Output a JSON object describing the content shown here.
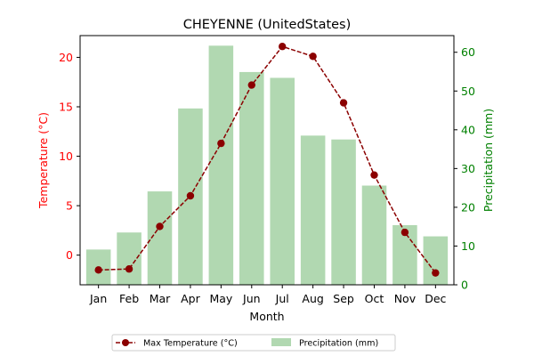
{
  "chart_data": {
    "type": "bar+line",
    "title": "CHEYENNE (UnitedStates)",
    "xlabel": "Month",
    "categories": [
      "Jan",
      "Feb",
      "Mar",
      "Apr",
      "May",
      "Jun",
      "Jul",
      "Aug",
      "Sep",
      "Oct",
      "Nov",
      "Dec"
    ],
    "left_axis": {
      "label": "Temperature (°C)",
      "color": "#ff0000",
      "ylim": [
        -3.0,
        22.2
      ],
      "ticks": [
        0,
        5,
        10,
        15,
        20
      ]
    },
    "right_axis": {
      "label": "Precipitation (mm)",
      "color": "#008000",
      "ylim": [
        0,
        64.3
      ],
      "ticks": [
        0,
        10,
        20,
        30,
        40,
        50,
        60
      ]
    },
    "series": [
      {
        "name": "Max Temperature (°C)",
        "type": "line",
        "axis": "left",
        "color": "#8b0000",
        "values": [
          -1.5,
          -1.4,
          2.9,
          6.0,
          11.3,
          17.2,
          21.1,
          20.1,
          15.4,
          8.1,
          2.3,
          -1.8
        ]
      },
      {
        "name": "Precipitation (mm)",
        "type": "bar",
        "axis": "right",
        "color": "#b1d8b1",
        "values": [
          9.1,
          13.5,
          24.1,
          45.5,
          61.7,
          54.9,
          53.4,
          38.5,
          37.5,
          25.6,
          15.4,
          12.5
        ]
      }
    ],
    "legend": {
      "placement": "bottom-center",
      "columns": 2
    }
  }
}
